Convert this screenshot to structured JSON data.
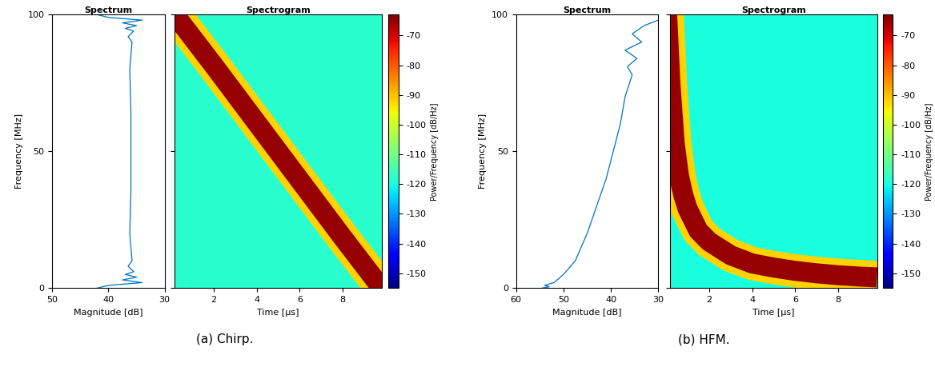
{
  "chart_data": [
    {
      "type": "line",
      "title": "Spectrum",
      "caption": "(a) Chirp.",
      "x_label": "Magnitude [dB]",
      "y_label": "Frequency [MHz]",
      "x": [
        42,
        40,
        34,
        37.5,
        35,
        37,
        35.5,
        36.5,
        35.8,
        36.2,
        36,
        36,
        36,
        36.2,
        35.8,
        36.5,
        35.5,
        37,
        35,
        37.5,
        34,
        40,
        42
      ],
      "y": [
        0,
        1,
        2,
        3,
        4,
        5,
        6,
        8,
        10,
        20,
        35,
        50,
        65,
        80,
        90,
        92,
        94,
        95,
        96,
        97,
        98,
        99,
        100
      ],
      "color": "#0072bd",
      "xlim": [
        50,
        30
      ],
      "xticks": [
        50,
        40,
        30
      ],
      "ylim": [
        0,
        100
      ],
      "yticks": [
        0,
        50,
        100
      ]
    },
    {
      "type": "heatmap",
      "title": "Spectrogram",
      "x_label": "Time [µs]",
      "xlim": [
        0.2,
        9.8
      ],
      "xticks": [
        2,
        4,
        6,
        8
      ],
      "ylim": [
        0,
        100
      ],
      "yticks": [
        0,
        50,
        100
      ],
      "tick_labels": "x",
      "background_level": -118,
      "ridge": {
        "time": [
          0.2,
          2,
          4,
          6,
          8,
          9.8
        ],
        "frequency": [
          100,
          81.5,
          60.5,
          39.5,
          18.5,
          0
        ],
        "level": -65,
        "edge_level": -92
      },
      "colorbar": {
        "label": "Power/Frequency [dB/Hz]",
        "range": [
          -155,
          -63
        ],
        "ticks": [
          -70,
          -80,
          -90,
          -100,
          -110,
          -120,
          -130,
          -140,
          -150
        ]
      }
    },
    {
      "type": "line",
      "title": "Spectrum",
      "caption": "(b) HFM.",
      "x_label": "Magnitude [dB]",
      "y_label": "Frequency [MHz]",
      "x": [
        54.5,
        53,
        54,
        52,
        50,
        47.5,
        45,
        43,
        41,
        39.5,
        38,
        37,
        35.5,
        36.5,
        34.5,
        37,
        33.5,
        35.5,
        33,
        30
      ],
      "y": [
        0,
        0.5,
        1,
        2,
        5,
        10,
        20,
        30,
        40,
        50,
        60,
        70,
        78,
        81,
        84,
        87,
        90,
        93,
        96,
        98
      ],
      "color": "#0072bd",
      "xlim": [
        60,
        30
      ],
      "xticks": [
        60,
        50,
        40,
        30
      ],
      "ylim": [
        0,
        100
      ],
      "yticks": [
        0,
        50,
        100
      ]
    },
    {
      "type": "heatmap",
      "title": "Spectrogram",
      "x_label": "Time [µs]",
      "xlim": [
        0.2,
        9.8
      ],
      "xticks": [
        2,
        4,
        6,
        8
      ],
      "ylim": [
        0,
        100
      ],
      "yticks": [
        0,
        50,
        100
      ],
      "tick_labels": "x",
      "background_level": -120,
      "ridge": {
        "time": [
          0.05,
          0.2,
          0.4,
          0.6,
          0.8,
          1,
          1.5,
          2,
          3,
          4,
          5,
          6,
          7,
          8,
          9,
          9.8
        ],
        "frequency": [
          100,
          75,
          53,
          41,
          34,
          29,
          21,
          17,
          12,
          9,
          7.5,
          6.3,
          5.4,
          4.7,
          4.2,
          3.9
        ],
        "level": -65,
        "edge_level": -92
      },
      "colorbar": {
        "label": "Power/Frequency [dB/Hz]",
        "range": [
          -155,
          -63
        ],
        "ticks": [
          -70,
          -80,
          -90,
          -100,
          -110,
          -120,
          -130,
          -140,
          -150
        ]
      }
    }
  ]
}
